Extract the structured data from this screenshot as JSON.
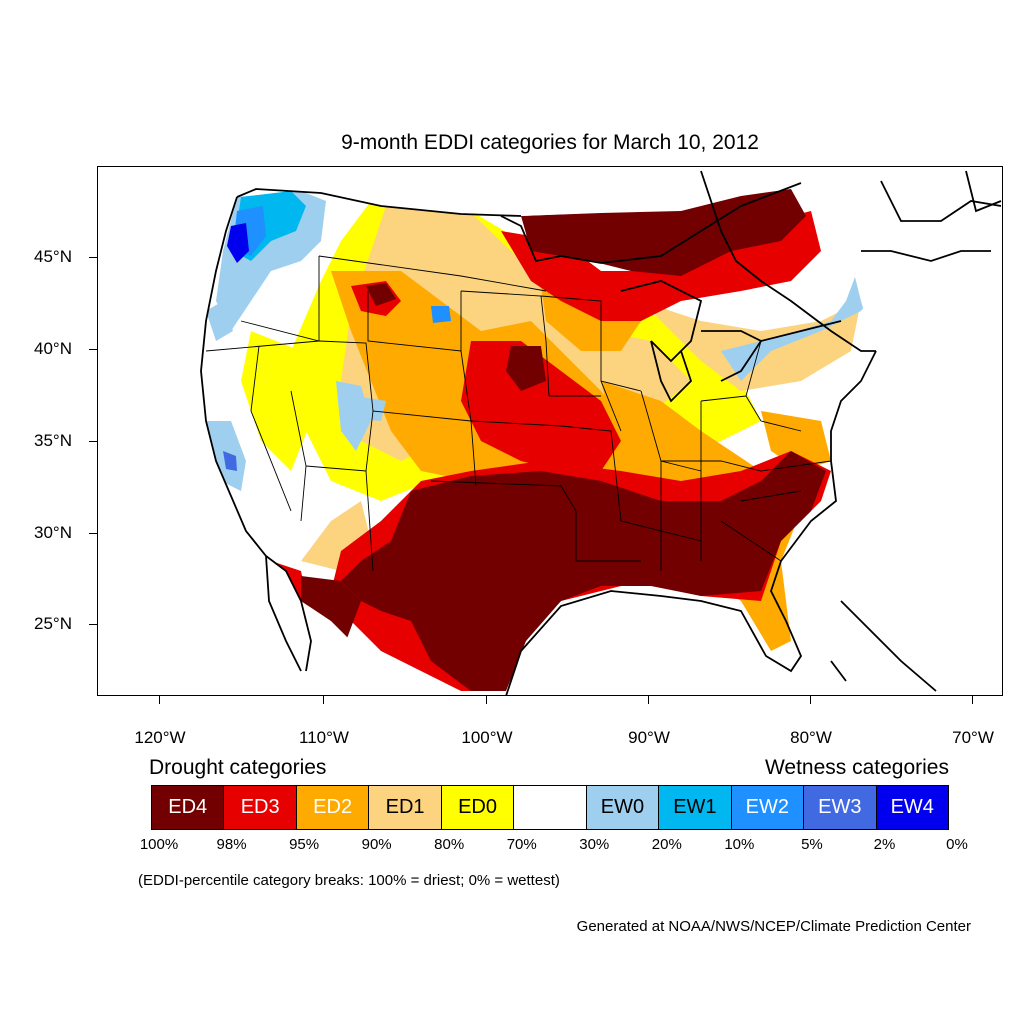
{
  "title": "9-month EDDI categories for March 10, 2012",
  "map": {
    "region": "Contiguous United States",
    "lat_labels": [
      "45°N",
      "40°N",
      "35°N",
      "30°N",
      "25°N"
    ],
    "lon_labels": [
      "120°W",
      "110°W",
      "100°W",
      "90°W",
      "80°W",
      "70°W"
    ]
  },
  "legend": {
    "drought_heading": "Drought categories",
    "wetness_heading": "Wetness categories",
    "categories": [
      {
        "label": "ED4",
        "color": "#730000",
        "text_color": "#ffffff"
      },
      {
        "label": "ED3",
        "color": "#e60000",
        "text_color": "#ffffff"
      },
      {
        "label": "ED2",
        "color": "#ffaa00",
        "text_color": "#ffffff"
      },
      {
        "label": "ED1",
        "color": "#fcd37f",
        "text_color": "#000000"
      },
      {
        "label": "ED0",
        "color": "#ffff00",
        "text_color": "#000000"
      },
      {
        "label": "",
        "color": "#ffffff",
        "text_color": "#000000"
      },
      {
        "label": "EW0",
        "color": "#9fcfef",
        "text_color": "#000000"
      },
      {
        "label": "EW1",
        "color": "#00b7ef",
        "text_color": "#000000"
      },
      {
        "label": "EW2",
        "color": "#1e90ff",
        "text_color": "#ffffff"
      },
      {
        "label": "EW3",
        "color": "#4169e1",
        "text_color": "#ffffff"
      },
      {
        "label": "EW4",
        "color": "#0000ee",
        "text_color": "#ffffff"
      }
    ],
    "breaks": [
      "100%",
      "98%",
      "95%",
      "90%",
      "80%",
      "70%",
      "30%",
      "20%",
      "10%",
      "5%",
      "2%",
      "0%"
    ]
  },
  "note": "(EDDI-percentile category breaks: 100% = driest; 0% = wettest)",
  "credit": "Generated at NOAA/NWS/NCEP/Climate Prediction Center"
}
